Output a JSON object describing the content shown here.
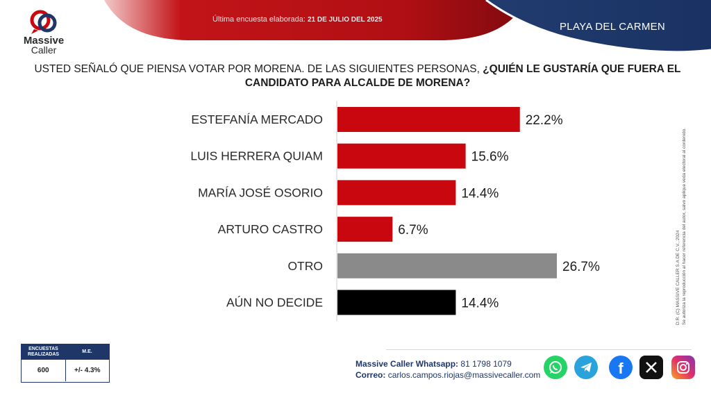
{
  "header": {
    "survey_label": "Última encuesta elaborada: ",
    "survey_date": "21 DE JULIO DEL 2025",
    "location": "PLAYA DEL CARMEN"
  },
  "logo": {
    "line1": "Massive",
    "line2": "Caller"
  },
  "question": {
    "normal": "USTED SEÑALÓ QUE PIENSA VOTAR POR MORENA. DE LAS SIGUIENTES PERSONAS, ",
    "bold": "¿QUIÉN LE GUSTARÍA QUE FUERA EL CANDIDATO PARA ALCALDE DE MORENA?"
  },
  "chart_data": {
    "type": "bar",
    "orientation": "horizontal",
    "categories": [
      "ESTEFANÍA MERCADO",
      "LUIS HERRERA QUIAM",
      "MARÍA JOSÉ OSORIO",
      "ARTURO CASTRO",
      "OTRO",
      "AÚN NO DECIDE"
    ],
    "values": [
      22.2,
      15.6,
      14.4,
      6.7,
      26.7,
      14.4
    ],
    "labels": [
      "22.2%",
      "15.6%",
      "14.4%",
      "6.7%",
      "26.7%",
      "14.4%"
    ],
    "colors": [
      "#c8080e",
      "#c8080e",
      "#c8080e",
      "#c8080e",
      "#8a8a8a",
      "#000000"
    ],
    "xlim": [
      0,
      26.7
    ],
    "grid": false,
    "legend": "none"
  },
  "credit": {
    "line1": "D.R. (C) MASSIVE CALLER S.A DE C.V., 2024",
    "line2": "Se autoriza la reproducción al hacer referencia del autor, salvo aplique veda electoral al contenido."
  },
  "stats": {
    "col1_header": "ENCUESTAS REALIZADAS",
    "col2_header": "M.E.",
    "col1_value": "600",
    "col2_value": "+/- 4.3%"
  },
  "contact": {
    "whatsapp_label": "Massive Caller Whatsapp:",
    "whatsapp_number": "81 1798 1079",
    "email_label": "Correo:",
    "email": "carlos.campos.riojas@massivecaller.com"
  },
  "social_icons": [
    "whatsapp-icon",
    "telegram-icon",
    "facebook-icon",
    "x-icon",
    "instagram-icon"
  ],
  "theme": {
    "red": "#c8080e",
    "navy": "#1e3768",
    "gray": "#8a8a8a",
    "black": "#000000"
  }
}
